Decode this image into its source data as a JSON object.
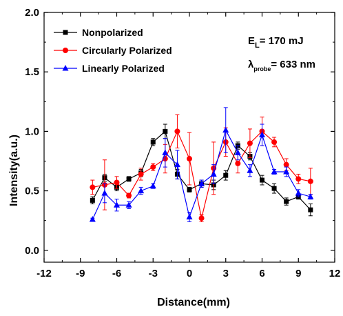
{
  "chart_data": {
    "type": "line",
    "xlabel": "Distance(mm)",
    "ylabel": "Intensity(a.u.)",
    "xlim": [
      -12,
      12
    ],
    "ylim": [
      -0.1,
      2.0
    ],
    "xticks": [
      -12,
      -9,
      -6,
      -3,
      0,
      3,
      6,
      9,
      12
    ],
    "yticks": [
      0.0,
      0.5,
      1.0,
      1.5,
      2.0
    ],
    "xtick_labels": [
      "-12",
      "-9",
      "-6",
      "-3",
      "0",
      "3",
      "6",
      "9",
      "12"
    ],
    "ytick_labels": [
      "0.0",
      "0.5",
      "1.0",
      "1.5",
      "2.0"
    ],
    "grid": false,
    "legend_position": "top-left",
    "annotations": [
      {
        "base": "E",
        "sub": "L",
        "rest": "= 170 mJ"
      },
      {
        "base": "λ",
        "sub": "probe",
        "rest": "= 633 nm"
      }
    ],
    "series": [
      {
        "name": "Nonpolarized",
        "color": "#000000",
        "marker": "square",
        "x": [
          -8,
          -7,
          -6,
          -5,
          -4,
          -3,
          -2,
          -1,
          0,
          1,
          2,
          3,
          4,
          5,
          6,
          7,
          8,
          9,
          10
        ],
        "y": [
          0.42,
          0.61,
          0.53,
          0.6,
          0.65,
          0.91,
          1.0,
          0.64,
          0.51,
          0.56,
          0.55,
          0.63,
          0.88,
          0.79,
          0.59,
          0.52,
          0.41,
          0.45,
          0.34
        ],
        "err": [
          0.03,
          0.03,
          0.03,
          0.02,
          0.03,
          0.03,
          0.06,
          0.04,
          0.02,
          0.03,
          0.04,
          0.04,
          0.03,
          0.03,
          0.04,
          0.04,
          0.03,
          0.02,
          0.05
        ]
      },
      {
        "name": "Circularly Polarized",
        "color": "#ff0000",
        "marker": "circle",
        "x": [
          -8,
          -7,
          -6,
          -5,
          -4,
          -3,
          -2,
          -1,
          0,
          1,
          2,
          3,
          4,
          5,
          6,
          7,
          8,
          9,
          10
        ],
        "y": [
          0.53,
          0.55,
          0.57,
          0.46,
          0.64,
          0.7,
          0.77,
          1.0,
          0.77,
          0.27,
          0.69,
          0.91,
          0.73,
          0.9,
          1.0,
          0.91,
          0.72,
          0.6,
          0.58
        ],
        "err": [
          0.06,
          0.21,
          0.05,
          0.02,
          0.05,
          0.03,
          0.12,
          0.14,
          0.22,
          0.03,
          0.22,
          0.12,
          0.08,
          0.12,
          0.12,
          0.04,
          0.05,
          0.04,
          0.11
        ]
      },
      {
        "name": "Linearly Polarized",
        "color": "#0000ff",
        "marker": "triangle",
        "x": [
          -8,
          -7,
          -6,
          -5,
          -4,
          -3,
          -2,
          -1,
          0,
          1,
          2,
          3,
          4,
          5,
          6,
          7,
          8,
          9,
          10
        ],
        "y": [
          0.26,
          0.48,
          0.38,
          0.38,
          0.5,
          0.54,
          0.82,
          0.72,
          0.28,
          0.56,
          0.64,
          1.01,
          0.82,
          0.67,
          0.97,
          0.66,
          0.66,
          0.48,
          0.45
        ],
        "err": [
          0.01,
          0.08,
          0.05,
          0.03,
          0.03,
          0.02,
          0.12,
          0.12,
          0.04,
          0.03,
          0.08,
          0.19,
          0.06,
          0.05,
          0.09,
          0.02,
          0.04,
          0.03,
          0.02
        ]
      }
    ]
  }
}
